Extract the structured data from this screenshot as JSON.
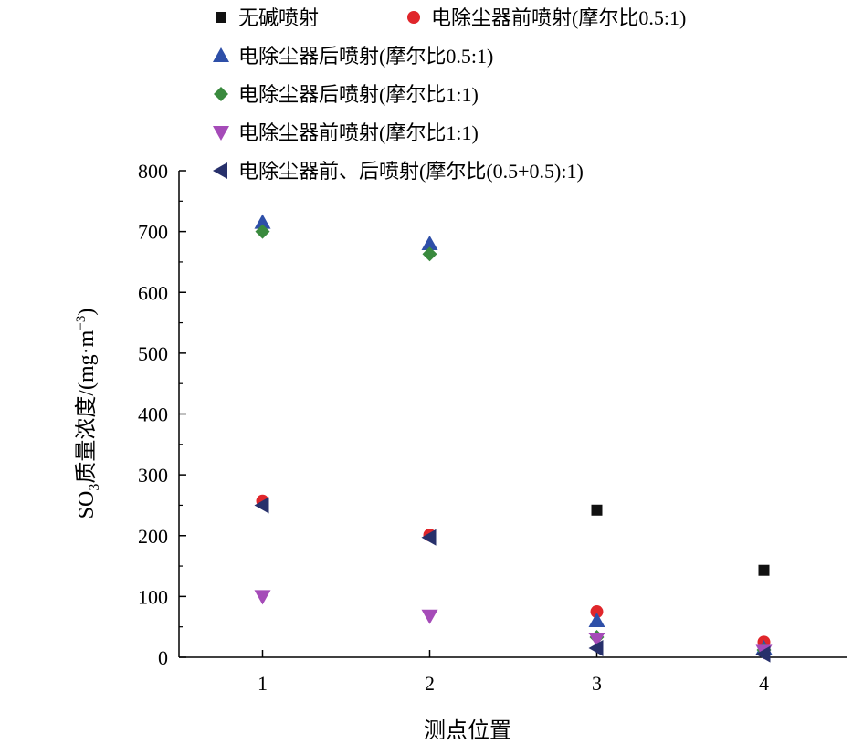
{
  "chart_data": {
    "type": "scatter",
    "xlabel": "测点位置",
    "ylabel_main": "SO",
    "ylabel_sub": "3",
    "ylabel_rest": "质量浓度/(mg·m",
    "ylabel_sup": "−3",
    "ylabel_end": ")",
    "x_ticks": [
      1,
      2,
      3,
      4
    ],
    "y_ticks": [
      0,
      100,
      200,
      300,
      400,
      500,
      600,
      700,
      800
    ],
    "xlim": [
      0.5,
      4.5
    ],
    "ylim": [
      0,
      800
    ],
    "grid": false,
    "legend_position": "top",
    "series": [
      {
        "name": "无碱喷射",
        "marker": "square",
        "color": "#111111",
        "x": [
          3,
          4
        ],
        "y": [
          242,
          143
        ]
      },
      {
        "name": "电除尘器前喷射(摩尔比0.5:1)",
        "marker": "circle",
        "color": "#e0262b",
        "x": [
          1,
          2,
          3,
          4
        ],
        "y": [
          257,
          201,
          75,
          25
        ]
      },
      {
        "name": "电除尘器后喷射(摩尔比0.5:1)",
        "marker": "triangle-up",
        "color": "#2e4fa8",
        "x": [
          1,
          2,
          3,
          4
        ],
        "y": [
          715,
          680,
          60,
          15
        ]
      },
      {
        "name": "电除尘器后喷射(摩尔比1:1)",
        "marker": "diamond",
        "color": "#3a8a3e",
        "x": [
          1,
          2,
          3,
          4
        ],
        "y": [
          700,
          663,
          33,
          12
        ]
      },
      {
        "name": "电除尘器前喷射(摩尔比1:1)",
        "marker": "triangle-down",
        "color": "#a54bb8",
        "x": [
          1,
          2,
          3,
          4
        ],
        "y": [
          100,
          68,
          30,
          10
        ]
      },
      {
        "name": "电除尘器前、后喷射(摩尔比(0.5+0.5):1)",
        "marker": "triangle-left",
        "color": "#27306b",
        "x": [
          1,
          2,
          3,
          4
        ],
        "y": [
          250,
          197,
          15,
          5
        ]
      }
    ]
  }
}
